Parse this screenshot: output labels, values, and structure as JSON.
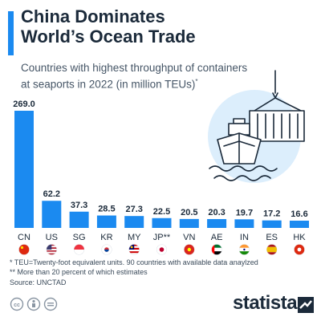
{
  "header": {
    "title_line1": "China Dominates",
    "title_line2": "World’s Ocean Trade",
    "subtitle_line1": "Countries with highest throughput of containers",
    "subtitle_line2": "at seaports in 2022 (in million TEUs)",
    "subtitle_mark": "*"
  },
  "chart_data": {
    "type": "bar",
    "categories": [
      "CN",
      "US",
      "SG",
      "KR",
      "MY",
      "JP**",
      "VN",
      "AE",
      "IN",
      "ES",
      "HK"
    ],
    "values": [
      269.0,
      62.2,
      37.3,
      28.5,
      27.3,
      22.5,
      20.5,
      20.3,
      19.7,
      17.2,
      16.6
    ],
    "value_labels": [
      "269.0",
      "62.2",
      "37.3",
      "28.5",
      "27.3",
      "22.5",
      "20.5",
      "20.3",
      "19.7",
      "17.2",
      "16.6"
    ],
    "flags": [
      "china",
      "usa",
      "singapore",
      "south-korea",
      "malaysia",
      "japan",
      "vietnam",
      "uae",
      "india",
      "spain",
      "hong-kong"
    ],
    "ylim": [
      0,
      269
    ],
    "grid": false,
    "bar_color": "#1b8af0"
  },
  "footer": {
    "note1": "*  TEU=Twenty-foot equivalent units. 90 countries with available data anaylzed",
    "note2": "** More than 20 percent of which estimates",
    "source": "Source: UNCTAD",
    "brand": "statista"
  },
  "colors": {
    "accent": "#1b8af0",
    "text": "#1b2a3a",
    "illustration_bg": "#dceefc"
  }
}
